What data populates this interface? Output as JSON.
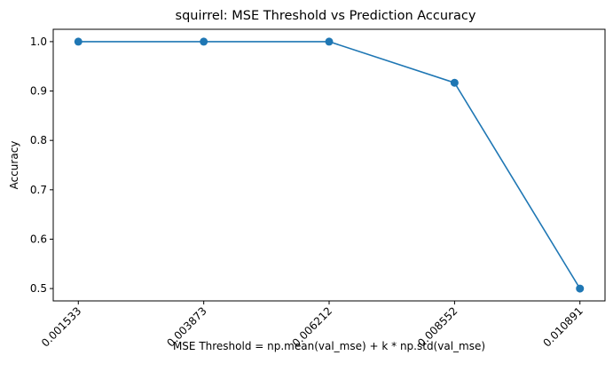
{
  "chart_data": {
    "type": "line",
    "title": "squirrel: MSE Threshold vs Prediction Accuracy",
    "xlabel": "MSE Threshold = np.mean(val_mse) + k * np.std(val_mse)",
    "ylabel": "Accuracy",
    "x_tick_labels": [
      "0.001533",
      "0.003873",
      "0.006212",
      "0.008552",
      "0.010891"
    ],
    "y_ticks": [
      0.5,
      0.6,
      0.7,
      0.8,
      0.9,
      1.0
    ],
    "y_tick_labels": [
      "0.5",
      "0.6",
      "0.7",
      "0.8",
      "0.9",
      "1.0"
    ],
    "ylim": [
      0.475,
      1.025
    ],
    "series": [
      {
        "x": [
          0.001533,
          0.003873,
          0.006212,
          0.008552,
          0.010891
        ],
        "values": [
          1.0,
          1.0,
          1.0,
          0.9167,
          0.5
        ],
        "color": "#1f77b4",
        "marker": "circle"
      }
    ],
    "grid": false,
    "legend": "none"
  }
}
